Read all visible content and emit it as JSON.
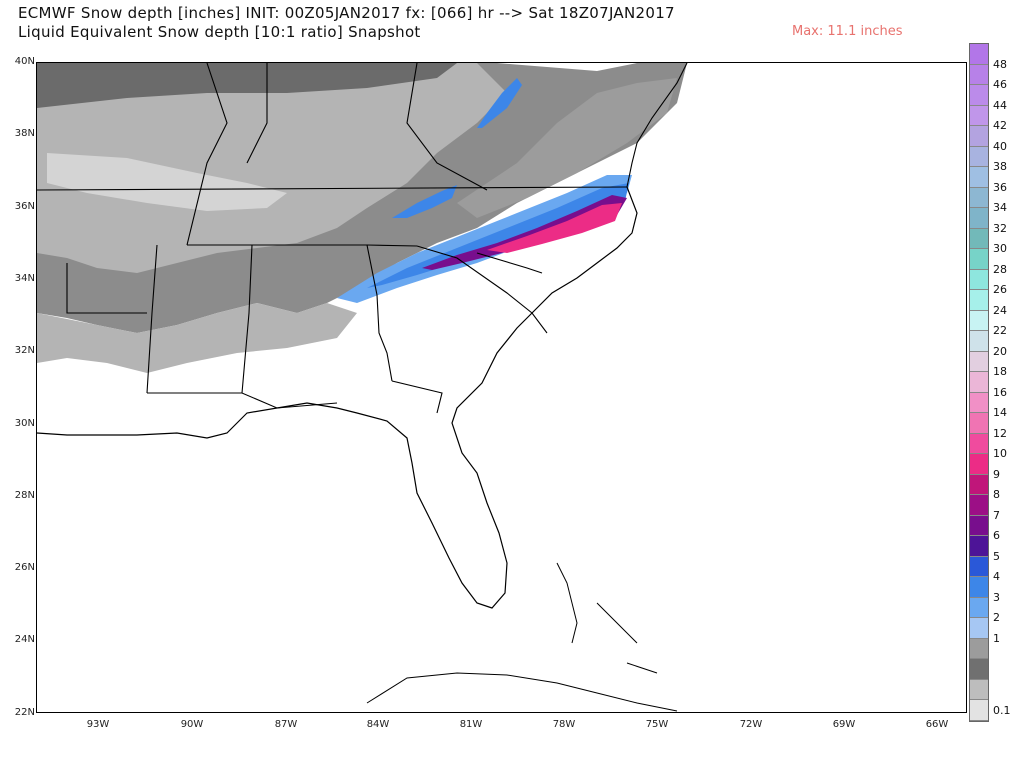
{
  "header": {
    "title_line1": "ECMWF Snow depth [inches] INIT: 00Z05JAN2017 fx: [066] hr --> Sat 18Z07JAN2017",
    "title_line2": "Liquid Equivalent Snow depth [10:1 ratio] Snapshot",
    "max_label": "Max: 11.1 inches",
    "max_color": "#e8726e"
  },
  "axes": {
    "lat_labels": [
      "40N",
      "38N",
      "36N",
      "34N",
      "32N",
      "30N",
      "28N",
      "26N",
      "24N",
      "22N"
    ],
    "lon_labels": [
      "93W",
      "90W",
      "87W",
      "84W",
      "81W",
      "78W",
      "75W",
      "72W",
      "69W",
      "66W"
    ]
  },
  "colorbar": {
    "labels": [
      "48",
      "46",
      "44",
      "42",
      "40",
      "38",
      "36",
      "34",
      "32",
      "30",
      "28",
      "26",
      "24",
      "22",
      "20",
      "18",
      "16",
      "14",
      "12",
      "10",
      "9",
      "8",
      "7",
      "6",
      "5",
      "4",
      "3",
      "2",
      "1",
      "0.1"
    ],
    "colors": [
      "#b276e8",
      "#b781e8",
      "#bb8bea",
      "#c096ea",
      "#b3a3e0",
      "#a8b3e0",
      "#9fbfe3",
      "#8db7d2",
      "#7fb4c9",
      "#72b9b9",
      "#77d3c8",
      "#8ee6de",
      "#a6f0ea",
      "#c8f3f3",
      "#cfe2ea",
      "#e2cfe0",
      "#ebb6d7",
      "#f190c6",
      "#f074b3",
      "#f04b9e",
      "#ec2c86",
      "#c0167a",
      "#9c0f86",
      "#780e8d",
      "#4d1497",
      "#2a58d8",
      "#3d86e8",
      "#6aa8f0",
      "#a6c7f3",
      "#9c9c9c",
      "#707070",
      "#bdbdbd",
      "#e3e3e3"
    ]
  },
  "map_colors": {
    "gray_dark": "#6b6b6b",
    "gray_mid": "#8c8c8c",
    "gray_light": "#b4b4b4",
    "gray_pale": "#d4d4d4",
    "blue_light": "#6aa8f0",
    "blue_mid": "#3d86e8",
    "blue_dark": "#2a58d8",
    "purple": "#780e8d",
    "magenta": "#ec2c86"
  }
}
